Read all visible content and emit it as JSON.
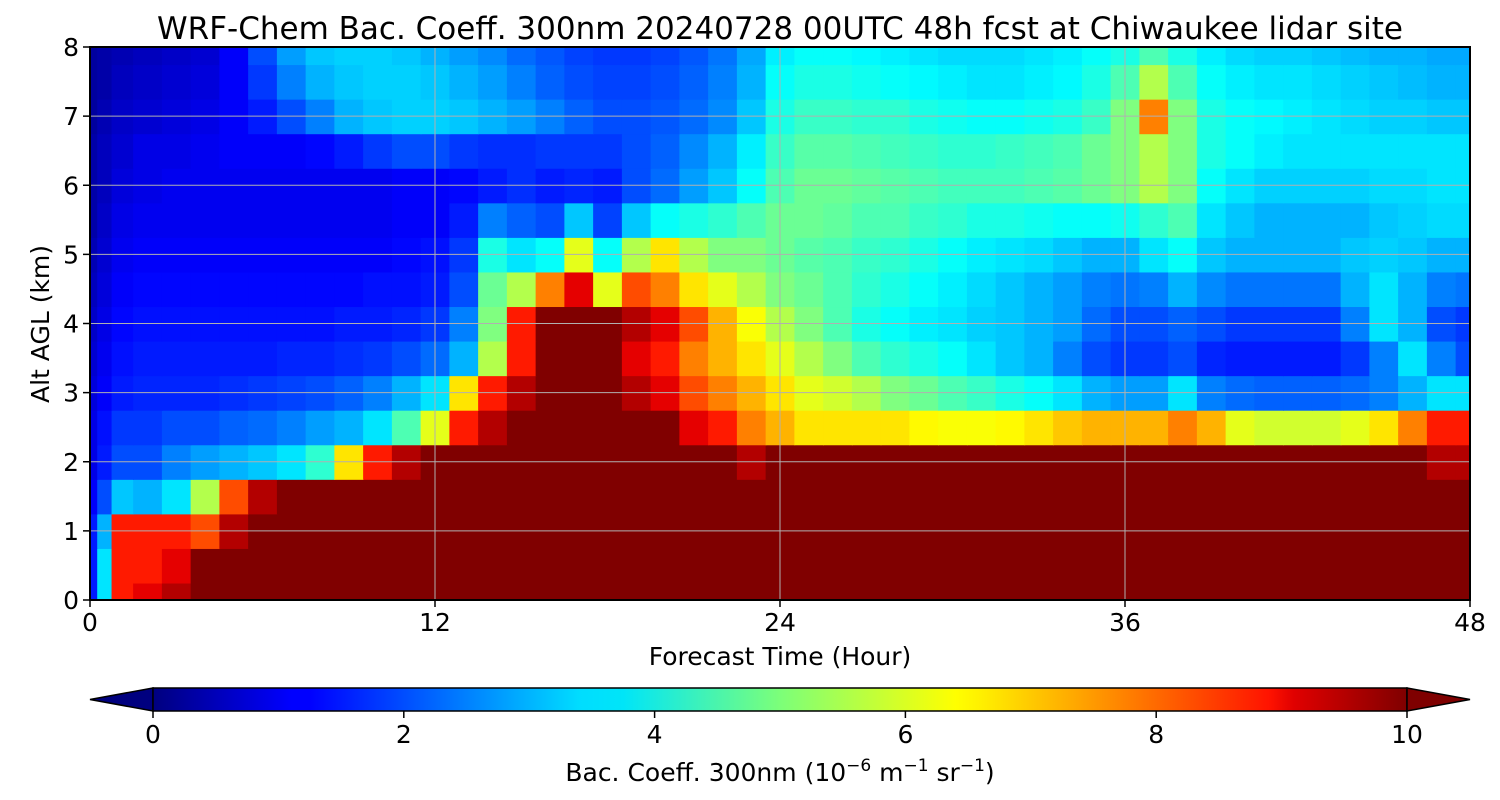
{
  "chart_data": {
    "type": "heatmap",
    "title": "WRF-Chem Bac. Coeff. 300nm  20240728 00UTC 48h fcst at Chiwaukee lidar site",
    "xlabel": "Forecast Time (Hour)",
    "ylabel": "Alt AGL (km)",
    "xlim": [
      0,
      48
    ],
    "ylim": [
      0,
      8
    ],
    "xticks": [
      "0",
      "12",
      "24",
      "36",
      "48"
    ],
    "yticks": [
      "0",
      "1",
      "2",
      "3",
      "4",
      "5",
      "6",
      "7",
      "8"
    ],
    "grid": true,
    "colormap": "jet",
    "colorbar": {
      "orientation": "horizontal",
      "location": "bottom",
      "extend": "both",
      "range": [
        0,
        10
      ],
      "ticks": [
        "0",
        "2",
        "4",
        "6",
        "8",
        "10"
      ],
      "label_main": "Bac. Coeff. 300nm  (10",
      "label_exp1": "−6",
      "label_mid": " m",
      "label_exp2": "−1",
      "label_mid2": " sr",
      "label_exp3": "−1",
      "label_end": ")"
    },
    "x": [
      0,
      0.5,
      1,
      2,
      3,
      4,
      5,
      6,
      7,
      8,
      9,
      10,
      11,
      12,
      13,
      14,
      15,
      16,
      17,
      18,
      19,
      20,
      21,
      22,
      23,
      24,
      25,
      26,
      27,
      28,
      29,
      30,
      31,
      32,
      33,
      34,
      35,
      36,
      37,
      38,
      39,
      40,
      41,
      42,
      43,
      44,
      45,
      46,
      47,
      48
    ],
    "y": [
      0,
      0.5,
      1,
      1.5,
      2,
      2.5,
      3,
      3.5,
      4,
      4.5,
      5,
      5.5,
      6,
      6.5,
      7,
      7.5,
      8
    ],
    "values": [
      [
        1.5,
        3.5,
        8.5,
        9.0,
        9.5,
        10.0,
        10.0,
        10.0,
        10.0,
        10.0,
        10.0,
        10.0,
        10.0,
        10.0,
        10.0,
        10.0,
        10.0,
        10.0,
        10.0,
        10.0,
        10.0,
        10.0,
        10.0,
        10.0,
        10.0,
        10.0,
        10.0,
        10.0,
        10.0,
        10.0,
        10.0,
        10.0,
        10.0,
        10.0,
        10.0,
        10.0,
        10.0,
        10.0,
        10.0,
        10.0,
        10.0,
        10.0,
        10.0,
        10.0,
        10.0,
        10.0,
        10.0,
        10.0,
        10.0,
        10.0
      ],
      [
        1.5,
        3.5,
        8.5,
        8.5,
        9.0,
        10.0,
        10.0,
        10.0,
        10.0,
        10.0,
        10.0,
        10.0,
        10.0,
        10.0,
        10.0,
        10.0,
        10.0,
        10.0,
        10.0,
        10.0,
        10.0,
        10.0,
        10.0,
        10.0,
        10.0,
        10.0,
        10.0,
        10.0,
        10.0,
        10.0,
        10.0,
        10.0,
        10.0,
        10.0,
        10.0,
        10.0,
        10.0,
        10.0,
        10.0,
        10.0,
        10.0,
        10.0,
        10.0,
        10.0,
        10.0,
        10.0,
        10.0,
        10.0,
        10.0,
        10.0
      ],
      [
        1.5,
        3.0,
        8.5,
        8.5,
        8.5,
        8.0,
        9.5,
        10.0,
        10.0,
        10.0,
        10.0,
        10.0,
        10.0,
        10.0,
        10.0,
        10.0,
        10.0,
        10.0,
        10.0,
        10.0,
        10.0,
        10.0,
        10.0,
        10.0,
        10.0,
        10.0,
        10.0,
        10.0,
        10.0,
        10.0,
        10.0,
        10.0,
        10.0,
        10.0,
        10.0,
        10.0,
        10.0,
        10.0,
        10.0,
        10.0,
        10.0,
        10.0,
        10.0,
        10.0,
        10.0,
        10.0,
        10.0,
        10.0,
        10.0,
        10.0
      ],
      [
        1.2,
        2.0,
        3.2,
        3.0,
        3.5,
        5.5,
        8.0,
        9.5,
        10.0,
        10.0,
        10.0,
        10.0,
        10.0,
        10.0,
        10.0,
        10.0,
        10.0,
        10.0,
        10.0,
        10.0,
        10.0,
        10.0,
        10.0,
        10.0,
        10.0,
        10.0,
        10.0,
        10.0,
        10.0,
        10.0,
        10.0,
        10.0,
        10.0,
        10.0,
        10.0,
        10.0,
        10.0,
        10.0,
        10.0,
        10.0,
        10.0,
        10.0,
        10.0,
        10.0,
        10.0,
        10.0,
        10.0,
        10.0,
        10.0,
        10.0
      ],
      [
        1.0,
        1.5,
        2.0,
        2.0,
        2.5,
        2.8,
        3.0,
        3.2,
        3.5,
        4.2,
        6.5,
        8.5,
        9.5,
        10.0,
        10.0,
        10.0,
        10.0,
        10.0,
        10.0,
        10.0,
        10.0,
        10.0,
        10.0,
        10.0,
        9.5,
        10.0,
        10.0,
        10.0,
        10.0,
        10.0,
        10.0,
        10.0,
        10.0,
        10.0,
        10.0,
        10.0,
        10.0,
        10.0,
        10.0,
        10.0,
        10.0,
        10.0,
        10.0,
        10.0,
        10.0,
        10.0,
        10.0,
        10.0,
        9.5,
        9.5
      ],
      [
        1.0,
        1.4,
        1.8,
        1.8,
        2.0,
        2.0,
        2.2,
        2.3,
        2.5,
        2.8,
        3.0,
        3.5,
        4.5,
        6.0,
        8.5,
        9.5,
        10.0,
        10.0,
        10.0,
        10.0,
        10.0,
        10.0,
        9.0,
        8.5,
        7.5,
        7.0,
        6.5,
        6.5,
        6.5,
        6.5,
        6.3,
        6.2,
        6.2,
        6.3,
        6.5,
        6.8,
        7.0,
        7.0,
        7.0,
        7.5,
        7.0,
        6.0,
        5.8,
        5.8,
        5.8,
        6.0,
        6.5,
        7.5,
        8.5,
        8.5
      ],
      [
        0.9,
        1.2,
        1.5,
        1.6,
        1.6,
        1.6,
        1.7,
        1.8,
        1.9,
        2.0,
        2.2,
        2.5,
        3.0,
        3.5,
        6.5,
        8.5,
        9.5,
        10.0,
        10.0,
        10.0,
        9.5,
        9.0,
        8.0,
        7.5,
        7.0,
        6.5,
        6.0,
        5.8,
        5.5,
        5.0,
        4.8,
        4.5,
        4.3,
        4.0,
        3.8,
        3.5,
        3.0,
        2.8,
        2.8,
        3.5,
        2.5,
        2.3,
        2.2,
        2.2,
        2.2,
        2.3,
        2.5,
        3.0,
        3.5,
        3.5
      ],
      [
        0.8,
        1.1,
        1.4,
        1.5,
        1.5,
        1.5,
        1.5,
        1.5,
        1.6,
        1.6,
        1.7,
        1.8,
        2.0,
        2.3,
        3.0,
        5.5,
        8.5,
        10.0,
        10.0,
        10.0,
        9.0,
        8.5,
        7.5,
        7.0,
        6.5,
        6.0,
        5.5,
        5.0,
        4.5,
        4.2,
        4.0,
        3.8,
        3.5,
        3.2,
        3.0,
        2.5,
        2.0,
        1.8,
        1.8,
        2.0,
        1.6,
        1.5,
        1.5,
        1.5,
        1.5,
        1.8,
        2.5,
        3.5,
        2.5,
        2.0
      ],
      [
        0.7,
        1.0,
        1.3,
        1.4,
        1.4,
        1.4,
        1.4,
        1.4,
        1.4,
        1.4,
        1.5,
        1.5,
        1.6,
        1.8,
        2.5,
        5.0,
        8.5,
        10.0,
        10.0,
        10.0,
        9.5,
        9.0,
        8.0,
        7.0,
        6.2,
        5.5,
        5.0,
        4.5,
        4.0,
        3.8,
        3.6,
        3.5,
        3.3,
        3.2,
        3.0,
        2.8,
        2.3,
        2.0,
        2.0,
        2.2,
        2.0,
        1.8,
        1.8,
        1.8,
        1.8,
        2.5,
        3.5,
        3.0,
        2.0,
        1.8
      ],
      [
        0.6,
        0.9,
        1.2,
        1.3,
        1.3,
        1.3,
        1.3,
        1.3,
        1.3,
        1.3,
        1.3,
        1.4,
        1.4,
        1.5,
        2.0,
        4.8,
        5.5,
        7.5,
        9.0,
        6.0,
        8.0,
        7.5,
        6.5,
        6.0,
        5.5,
        5.0,
        4.8,
        4.5,
        4.2,
        4.0,
        3.8,
        3.6,
        3.4,
        3.2,
        3.0,
        2.8,
        2.5,
        2.4,
        2.5,
        3.0,
        2.6,
        2.4,
        2.4,
        2.4,
        2.4,
        3.0,
        3.5,
        3.0,
        2.5,
        2.4
      ],
      [
        0.5,
        0.8,
        1.1,
        1.2,
        1.2,
        1.2,
        1.2,
        1.2,
        1.2,
        1.2,
        1.2,
        1.2,
        1.3,
        1.4,
        1.8,
        4.0,
        3.5,
        3.8,
        6.0,
        3.8,
        5.5,
        6.5,
        5.5,
        5.0,
        5.0,
        4.8,
        4.6,
        4.5,
        4.3,
        4.2,
        4.0,
        3.8,
        3.6,
        3.5,
        3.4,
        3.2,
        3.0,
        3.0,
        3.5,
        3.8,
        3.2,
        3.0,
        3.0,
        3.0,
        3.0,
        3.2,
        3.3,
        3.2,
        3.0,
        3.0
      ],
      [
        0.4,
        0.7,
        1.0,
        1.1,
        1.1,
        1.1,
        1.1,
        1.1,
        1.1,
        1.1,
        1.1,
        1.1,
        1.2,
        1.2,
        1.5,
        2.5,
        2.2,
        2.0,
        3.2,
        1.9,
        3.2,
        3.8,
        4.0,
        4.2,
        4.5,
        4.8,
        4.8,
        4.7,
        4.5,
        4.5,
        4.3,
        4.2,
        4.0,
        4.0,
        3.9,
        3.8,
        3.8,
        3.9,
        4.2,
        4.5,
        3.5,
        3.2,
        3.0,
        3.0,
        3.0,
        3.0,
        3.2,
        3.3,
        3.4,
        3.4
      ],
      [
        0.4,
        0.6,
        0.9,
        1.0,
        1.1,
        1.1,
        1.1,
        1.1,
        1.1,
        1.1,
        1.1,
        1.1,
        1.2,
        1.2,
        1.3,
        1.5,
        1.7,
        1.5,
        1.6,
        1.5,
        2.0,
        2.3,
        2.8,
        3.2,
        3.8,
        4.5,
        4.8,
        4.8,
        4.7,
        4.6,
        4.5,
        4.4,
        4.4,
        4.4,
        4.5,
        4.6,
        4.8,
        5.0,
        5.5,
        5.0,
        3.8,
        3.5,
        3.3,
        3.3,
        3.3,
        3.3,
        3.4,
        3.4,
        3.5,
        3.5
      ],
      [
        0.4,
        0.6,
        0.8,
        1.0,
        1.0,
        1.1,
        1.2,
        1.2,
        1.2,
        1.3,
        1.5,
        1.8,
        2.0,
        2.0,
        1.8,
        1.7,
        1.7,
        1.8,
        1.8,
        1.8,
        2.0,
        2.2,
        2.6,
        3.0,
        3.6,
        4.3,
        4.6,
        4.6,
        4.5,
        4.4,
        4.3,
        4.2,
        4.2,
        4.3,
        4.4,
        4.5,
        4.8,
        5.0,
        5.5,
        5.0,
        4.0,
        3.8,
        3.6,
        3.5,
        3.5,
        3.5,
        3.5,
        3.5,
        3.5,
        3.5
      ],
      [
        0.3,
        0.5,
        0.7,
        0.8,
        0.9,
        1.0,
        1.2,
        1.5,
        2.0,
        2.5,
        3.0,
        3.2,
        3.3,
        3.3,
        3.2,
        3.0,
        2.8,
        2.5,
        2.2,
        2.0,
        2.0,
        2.1,
        2.3,
        2.6,
        3.2,
        4.0,
        4.3,
        4.3,
        4.2,
        4.2,
        4.0,
        3.9,
        3.8,
        3.8,
        3.9,
        4.0,
        4.3,
        5.0,
        7.5,
        5.0,
        4.0,
        3.8,
        3.7,
        3.6,
        3.5,
        3.4,
        3.3,
        3.3,
        3.2,
        3.2
      ],
      [
        0.3,
        0.4,
        0.6,
        0.7,
        0.8,
        0.9,
        1.2,
        1.8,
        2.5,
        3.0,
        3.2,
        3.3,
        3.3,
        3.2,
        3.0,
        2.8,
        2.5,
        2.2,
        2.0,
        1.9,
        1.9,
        2.0,
        2.2,
        2.5,
        3.0,
        3.8,
        4.0,
        4.0,
        3.9,
        3.8,
        3.7,
        3.6,
        3.5,
        3.5,
        3.6,
        3.7,
        4.0,
        4.5,
        5.5,
        4.5,
        3.8,
        3.6,
        3.5,
        3.5,
        3.4,
        3.3,
        3.2,
        3.1,
        3.0,
        3.0
      ],
      [
        0.3,
        0.4,
        0.5,
        0.6,
        0.7,
        0.8,
        1.2,
        2.0,
        2.8,
        3.2,
        3.3,
        3.3,
        3.2,
        3.0,
        2.8,
        2.6,
        2.3,
        2.1,
        1.9,
        1.8,
        1.8,
        1.9,
        2.1,
        2.4,
        2.9,
        3.6,
        3.8,
        3.8,
        3.7,
        3.6,
        3.5,
        3.4,
        3.4,
        3.4,
        3.5,
        3.6,
        3.8,
        4.0,
        4.5,
        4.0,
        3.6,
        3.4,
        3.3,
        3.3,
        3.2,
        3.1,
        3.0,
        3.0,
        2.9,
        2.9
      ]
    ]
  }
}
